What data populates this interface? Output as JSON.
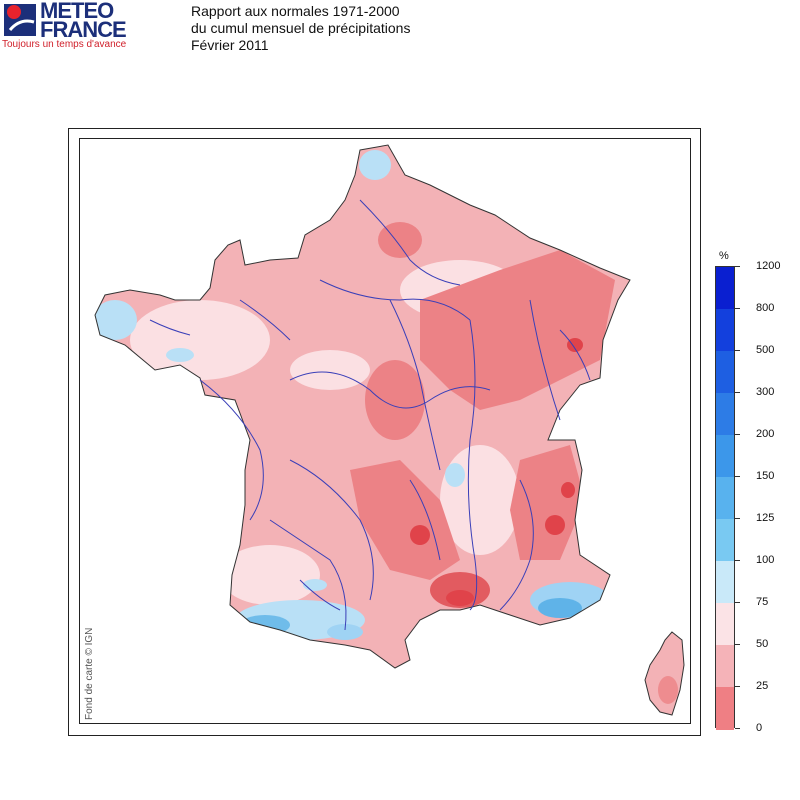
{
  "logo": {
    "line1": "METEO",
    "line2": "FRANCE",
    "tagline": "Toujours un temps d'avance"
  },
  "title": {
    "line1": "Rapport aux normales 1971-2000",
    "line2": "du cumul mensuel de précipitations",
    "line3": "Février 2011"
  },
  "copyright": "Fond de carte © IGN",
  "legend": {
    "unit": "%",
    "labels": [
      "1200",
      "800",
      "500",
      "300",
      "200",
      "150",
      "125",
      "100",
      "75",
      "50",
      "25",
      "0"
    ],
    "colors": [
      "#0a1fd0",
      "#1340dd",
      "#1e5fe2",
      "#2d7ce6",
      "#3c97ea",
      "#58b2ee",
      "#79c9f2",
      "#c9e9f9",
      "#fbe3e6",
      "#f5b3b8",
      "#ef7f84",
      "#e63a3a"
    ]
  },
  "colors": {
    "dry_strong": "#e25b60",
    "dry_medium": "#f0a3a7",
    "dry_light": "#fbe0e3",
    "wet_light": "#b9e0f6",
    "wet_medium": "#5fb3e8",
    "river": "#3a3fb8"
  }
}
